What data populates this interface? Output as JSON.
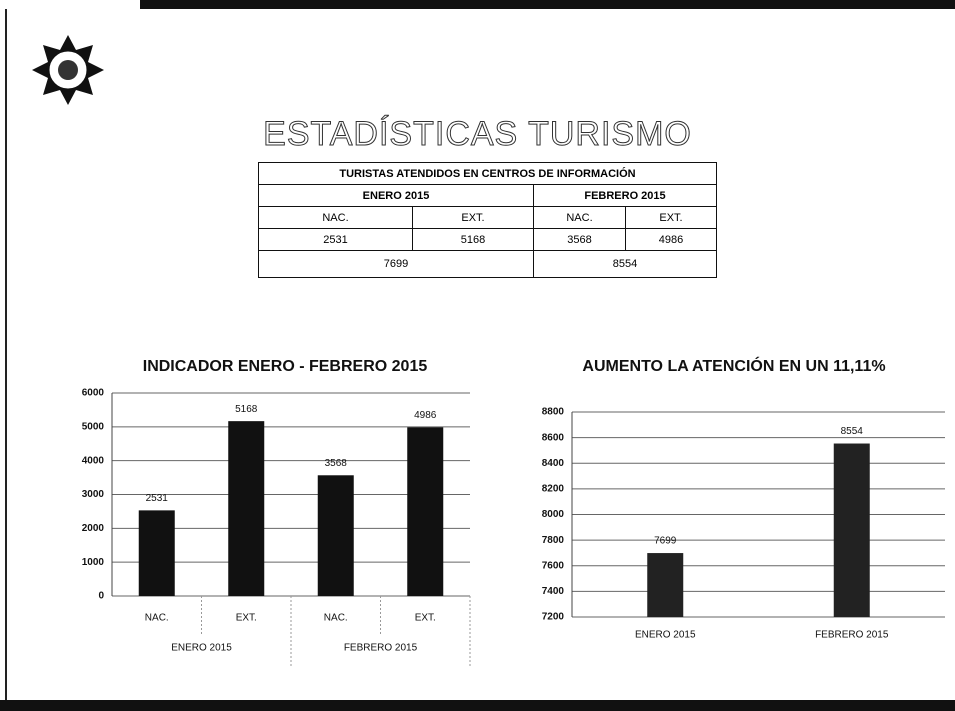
{
  "title": "ESTADÍSTICAS TURISMO",
  "table": {
    "rows": [
      [
        "TURISTAS ATENDIDOS EN CENTROS DE INFORMACIÓN"
      ],
      [
        "ENERO 2015",
        "FEBRERO 2015"
      ],
      [
        "NAC.",
        "EXT.",
        "NAC.",
        "EXT."
      ],
      [
        "2531",
        "5168",
        "3568",
        "4986"
      ],
      [
        "7699",
        "8554"
      ]
    ]
  },
  "chart_data": [
    {
      "type": "bar",
      "title": "INDICADOR  ENERO - FEBRERO 2015",
      "categories": [
        "NAC.",
        "EXT.",
        "NAC.",
        "EXT."
      ],
      "groups": [
        "ENERO 2015",
        "FEBRERO 2015"
      ],
      "values": [
        2531,
        5168,
        3568,
        4986
      ],
      "color": "#111111",
      "ylim": [
        0,
        6000
      ],
      "yticks": [
        0,
        1000,
        2000,
        3000,
        4000,
        5000,
        6000
      ],
      "grid": true
    },
    {
      "type": "bar",
      "title": "AUMENTO LA ATENCIÓN EN UN 11,11%",
      "categories": [
        "ENERO 2015",
        "FEBRERO 2015"
      ],
      "values": [
        7699,
        8554
      ],
      "color": "#222222",
      "ylim": [
        7200,
        8800
      ],
      "yticks": [
        7200,
        7400,
        7600,
        7800,
        8000,
        8200,
        8400,
        8600,
        8800
      ],
      "grid": true
    }
  ]
}
